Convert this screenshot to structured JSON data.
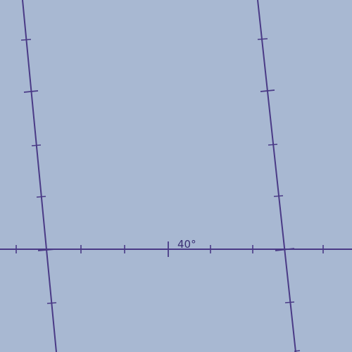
{
  "map": {
    "background_color": "#a8b8d2",
    "graticule_color": "#4a3a86",
    "parallel_label": "40°"
  }
}
